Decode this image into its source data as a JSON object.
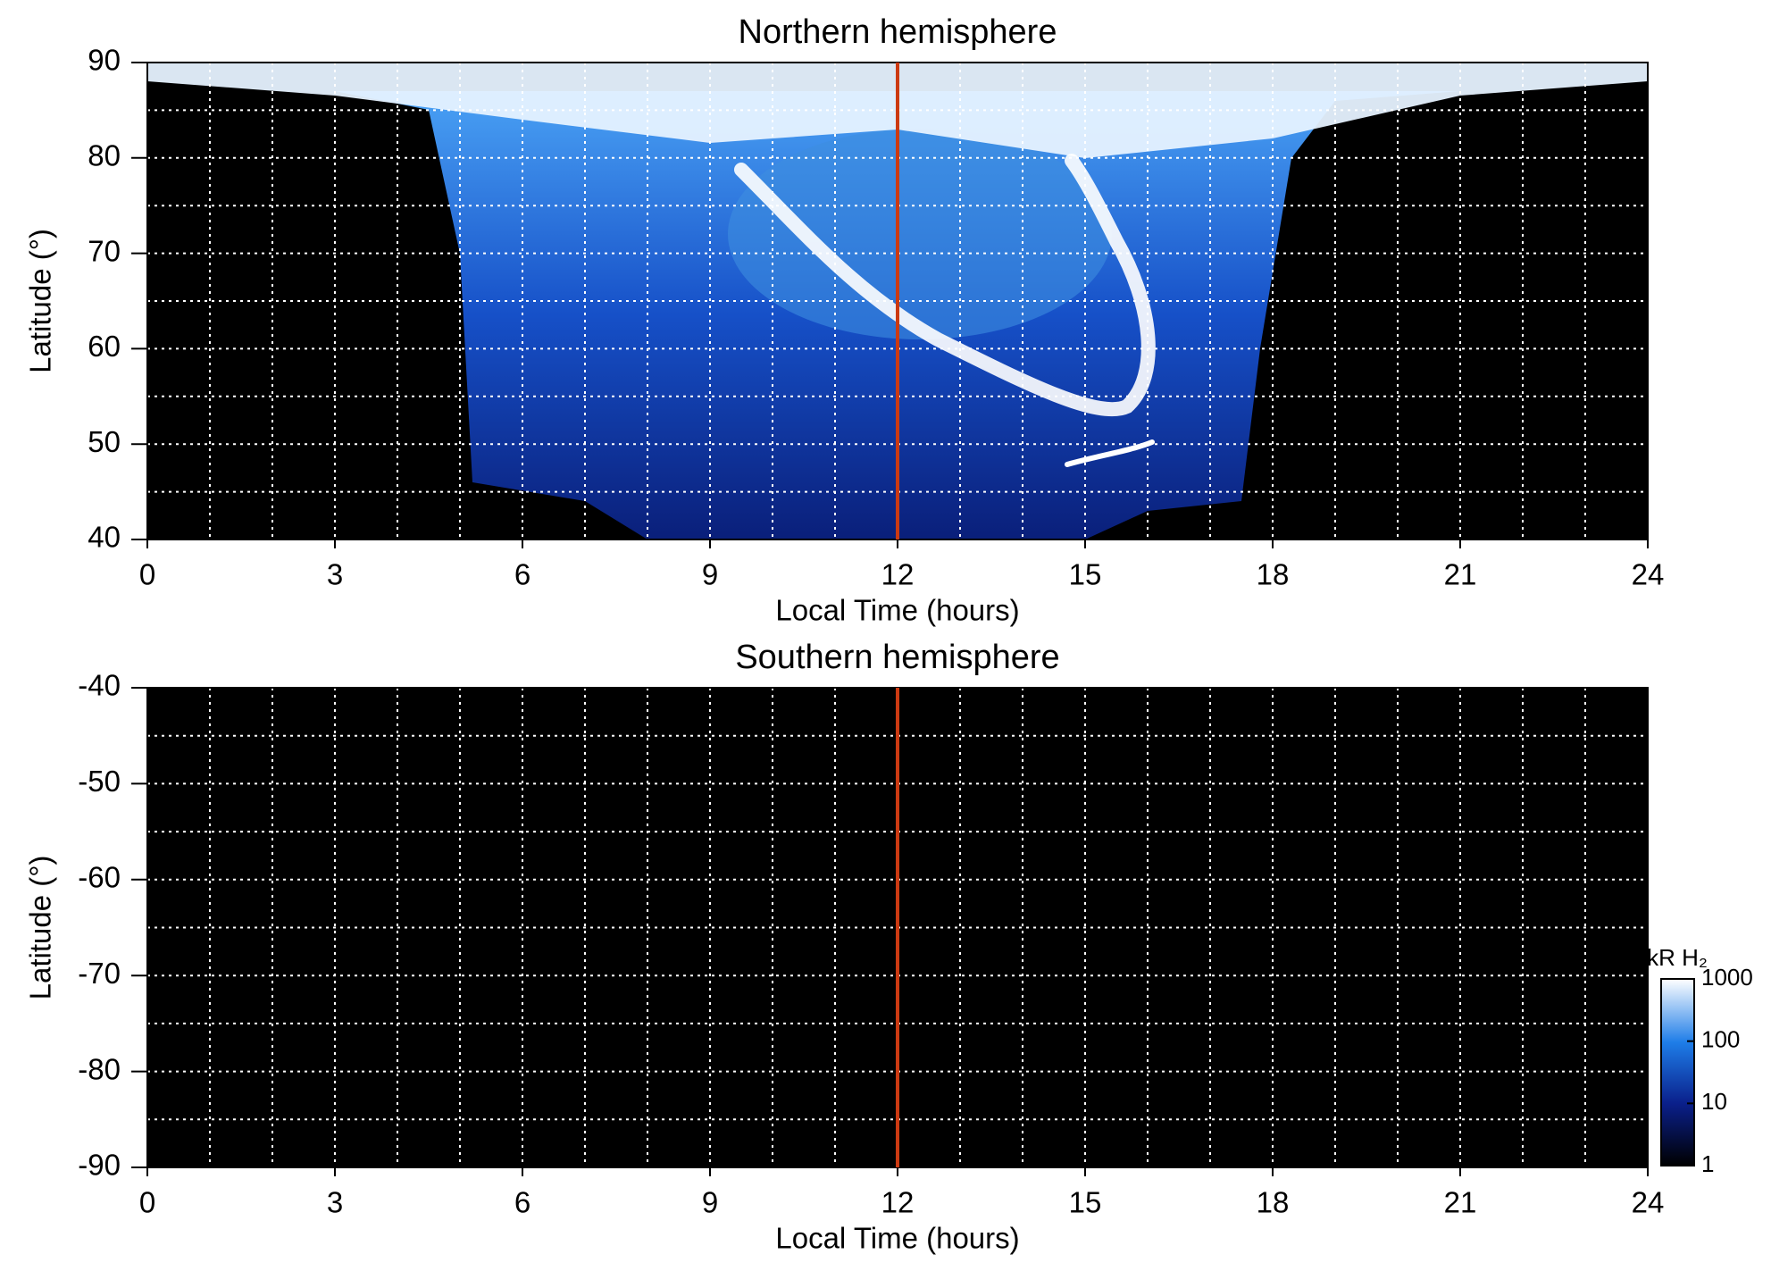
{
  "chart_data": [
    {
      "type": "heatmap",
      "title": "Northern hemisphere",
      "xlabel": "Local Time (hours)",
      "ylabel": "Latitude (°)",
      "xlim": [
        0,
        24
      ],
      "xticks": [
        0,
        3,
        6,
        9,
        12,
        15,
        18,
        21,
        24
      ],
      "ylim": [
        40,
        90
      ],
      "yticks": [
        40,
        50,
        60,
        70,
        80,
        90
      ],
      "xgrid": [
        1,
        2,
        3,
        4,
        5,
        6,
        7,
        8,
        9,
        10,
        11,
        12,
        13,
        14,
        15,
        16,
        17,
        18,
        19,
        20,
        21,
        22,
        23
      ],
      "ygrid": [
        45,
        50,
        55,
        60,
        65,
        70,
        75,
        80,
        85
      ],
      "vline": {
        "x": 12,
        "color": "#cc3a12"
      }
    },
    {
      "type": "heatmap",
      "title": "Southern hemisphere",
      "xlabel": "Local Time (hours)",
      "ylabel": "Latitude (°)",
      "xlim": [
        0,
        24
      ],
      "xticks": [
        0,
        3,
        6,
        9,
        12,
        15,
        18,
        21,
        24
      ],
      "ylim": [
        -90,
        -40
      ],
      "yticks": [
        -90,
        -80,
        -70,
        -60,
        -50,
        -40
      ],
      "xgrid": [
        1,
        2,
        3,
        4,
        5,
        6,
        7,
        8,
        9,
        10,
        11,
        12,
        13,
        14,
        15,
        16,
        17,
        18,
        19,
        20,
        21,
        22,
        23
      ],
      "ygrid": [
        -85,
        -80,
        -75,
        -70,
        -65,
        -60,
        -55,
        -50,
        -45
      ],
      "vline": {
        "x": 12,
        "color": "#cc3a12"
      },
      "colorbar": {
        "label": "kR H₂",
        "lim": [
          1,
          1000
        ],
        "log": true,
        "ticks": [
          1,
          10,
          100,
          1000
        ]
      }
    }
  ]
}
